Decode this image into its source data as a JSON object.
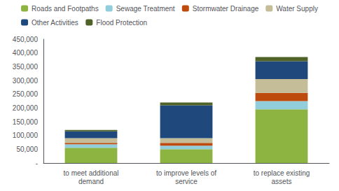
{
  "chart_data": {
    "type": "bar",
    "stacked": true,
    "grid": false,
    "legend": "top",
    "categories": [
      "to meet additional\ndemand",
      "to improve levels of\nservice",
      "to replace existing\nassets"
    ],
    "series": [
      {
        "name": "Roads and Footpaths",
        "color": "#8DB441",
        "values": [
          55000,
          50000,
          195000
        ]
      },
      {
        "name": "Sewage Treatment",
        "color": "#92CDDC",
        "values": [
          13000,
          13000,
          30000
        ]
      },
      {
        "name": "Stormwater Drainage",
        "color": "#BE4B0E",
        "values": [
          5000,
          10000,
          30000
        ]
      },
      {
        "name": "Water Supply",
        "color": "#C4BD97",
        "values": [
          17000,
          17000,
          50000
        ]
      },
      {
        "name": "Other Activities",
        "color": "#1F497D",
        "values": [
          25000,
          120000,
          65000
        ]
      },
      {
        "name": "Flood Protection",
        "color": "#4F6228",
        "values": [
          5000,
          10000,
          15000
        ]
      }
    ],
    "ylim": [
      0,
      450000
    ],
    "yticks": [
      {
        "value": 0,
        "label": "-"
      },
      {
        "value": 50000,
        "label": "50,000"
      },
      {
        "value": 100000,
        "label": "100,000"
      },
      {
        "value": 150000,
        "label": "150,000"
      },
      {
        "value": 200000,
        "label": "200,000"
      },
      {
        "value": 250000,
        "label": "250,000"
      },
      {
        "value": 300000,
        "label": "300,000"
      },
      {
        "value": 350000,
        "label": "350,000"
      },
      {
        "value": 400000,
        "label": "400,000"
      },
      {
        "value": 450000,
        "label": "450,000"
      }
    ]
  }
}
